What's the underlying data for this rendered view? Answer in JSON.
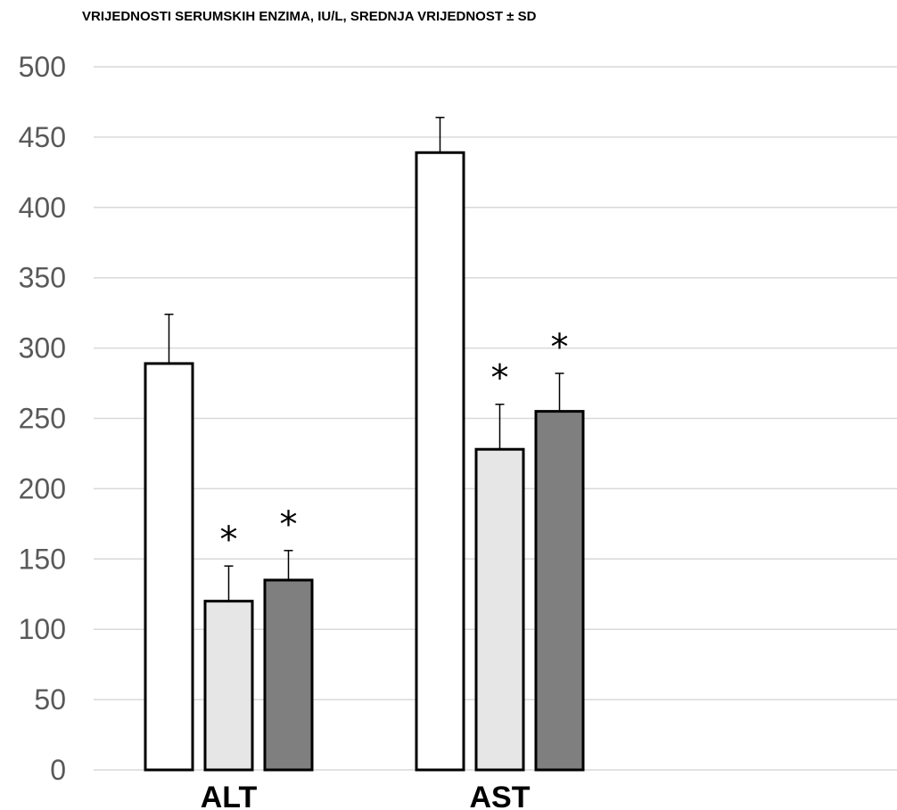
{
  "chart_data": {
    "type": "bar",
    "title": "VRIJEDNOSTI SERUMSKIH ENZIMA, IU/L, SREDNJA VRIJEDNOST ± SD",
    "xlabel": "",
    "ylabel": "",
    "ylim": [
      0,
      500
    ],
    "yticks": [
      "0",
      "50",
      "100",
      "150",
      "200",
      "250",
      "300",
      "350",
      "400",
      "450",
      "500"
    ],
    "grid": true,
    "legend": "none",
    "categories": [
      "ALT",
      "AST"
    ],
    "series": [
      {
        "values": [
          289,
          439
        ],
        "errors": [
          35,
          25
        ],
        "significant": [
          false,
          false
        ],
        "color": "#ffffff"
      },
      {
        "values": [
          120,
          228
        ],
        "errors": [
          25,
          32
        ],
        "significant": [
          true,
          true
        ],
        "color": "#e6e6e6"
      },
      {
        "values": [
          135,
          255
        ],
        "errors": [
          21,
          27
        ],
        "significant": [
          true,
          true
        ],
        "color": "#7f7f7f"
      }
    ],
    "significance_marker": "*",
    "bar_outline_color": "#000000",
    "grid_color": "#d9d9d9"
  }
}
